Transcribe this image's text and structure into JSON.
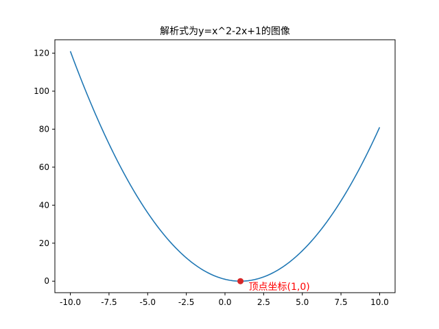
{
  "chart_data": {
    "type": "line",
    "title": "解析式为y=x^2-2x+1的图像",
    "xlabel": "",
    "ylabel": "",
    "xlim": [
      -11.0,
      11.0
    ],
    "ylim": [
      -6.05,
      127.05
    ],
    "grid": false,
    "x_ticks": [
      -10.0,
      -7.5,
      -5.0,
      -2.5,
      0.0,
      2.5,
      5.0,
      7.5,
      10.0
    ],
    "x_tick_labels": [
      "-10.0",
      "-7.5",
      "-5.0",
      "-2.5",
      "0.0",
      "2.5",
      "5.0",
      "7.5",
      "10.0"
    ],
    "y_ticks": [
      0,
      20,
      40,
      60,
      80,
      100,
      120
    ],
    "y_tick_labels": [
      "0",
      "20",
      "40",
      "60",
      "80",
      "100",
      "120"
    ],
    "series": [
      {
        "color": "#1f77b4",
        "function": "x^2-2x+1",
        "x_range": [
          -10,
          10
        ],
        "x": [
          -10,
          -9,
          -8,
          -7,
          -6,
          -5,
          -4,
          -3,
          -2,
          -1,
          0,
          1,
          2,
          3,
          4,
          5,
          6,
          7,
          8,
          9,
          10
        ],
        "y": [
          121,
          100,
          81,
          64,
          49,
          36,
          25,
          16,
          9,
          4,
          1,
          0,
          1,
          4,
          9,
          16,
          25,
          36,
          49,
          64,
          81
        ]
      }
    ],
    "vertex_point": {
      "x": 1,
      "y": 0,
      "color": "#d62728"
    },
    "annotation": {
      "text": "顶点坐标(1,0)",
      "x": 1,
      "y": 0,
      "color": "#ff0000"
    }
  }
}
